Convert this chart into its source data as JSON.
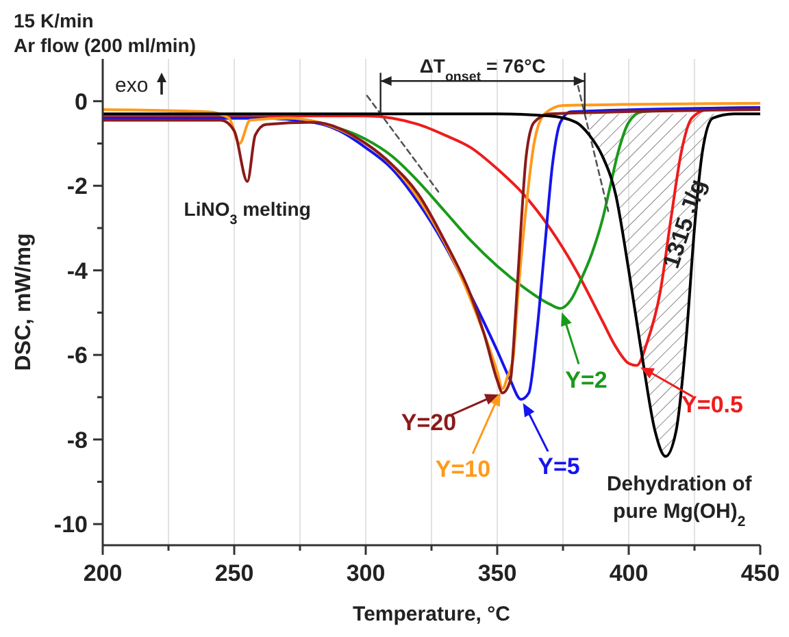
{
  "chart_data": {
    "type": "line",
    "xlabel": "Temperature, °C",
    "ylabel": "DSC, mW/mg",
    "xlim": [
      200,
      450
    ],
    "ylim": [
      -10.5,
      1
    ],
    "xticks": [
      200,
      {
        "value": 225,
        "label": null
      },
      250,
      {
        "value": 275,
        "label": null
      },
      300,
      {
        "value": 325,
        "label": null
      },
      350,
      {
        "value": 375,
        "label": null
      },
      400,
      {
        "value": 425,
        "label": null
      },
      450
    ],
    "yticks": [
      -10,
      {
        "value": -9,
        "label": null
      },
      -8,
      {
        "value": -7,
        "label": null
      },
      -6,
      {
        "value": -5,
        "label": null
      },
      -4,
      {
        "value": -3,
        "label": null
      },
      -2,
      {
        "value": -1,
        "label": null
      },
      0
    ],
    "grid": "x",
    "legend": "bottom right",
    "series": [
      {
        "color": "#000000",
        "x": [
          200,
          250,
          300,
          350,
          370,
          380,
          385,
          390,
          395,
          400,
          405,
          410,
          414,
          418,
          422,
          425,
          428,
          432,
          440,
          450
        ],
        "values": [
          -0.3,
          -0.3,
          -0.3,
          -0.3,
          -0.35,
          -0.5,
          -0.8,
          -1.3,
          -2.2,
          -4,
          -6,
          -7.8,
          -8.4,
          -7.8,
          -5.5,
          -3,
          -1.2,
          -0.4,
          -0.3,
          -0.3
        ]
      },
      {
        "name": "Y=0.5",
        "color": "#ee1c1c",
        "x": [
          200,
          250,
          300,
          310,
          320,
          330,
          340,
          350,
          360,
          370,
          380,
          390,
          395,
          400,
          403,
          407,
          412,
          416,
          420,
          424,
          430,
          450
        ],
        "values": [
          -0.35,
          -0.35,
          -0.35,
          -0.4,
          -0.55,
          -0.8,
          -1.1,
          -1.6,
          -2.2,
          -3,
          -4,
          -5.2,
          -5.8,
          -6.2,
          -6.25,
          -5.7,
          -4.5,
          -2.8,
          -1.2,
          -0.4,
          -0.2,
          -0.15
        ]
      },
      {
        "name": "Y=2",
        "color": "#1a9a1a",
        "x": [
          200,
          260,
          280,
          300,
          310,
          320,
          330,
          340,
          350,
          360,
          370,
          374,
          378,
          382,
          386,
          390,
          393,
          396,
          400,
          405,
          450
        ],
        "values": [
          -0.4,
          -0.4,
          -0.5,
          -0.9,
          -1.3,
          -1.9,
          -2.6,
          -3.3,
          -3.9,
          -4.4,
          -4.8,
          -4.9,
          -4.7,
          -4.2,
          -3.6,
          -2.8,
          -2,
          -1.2,
          -0.5,
          -0.25,
          -0.15
        ]
      },
      {
        "name": "Y=5",
        "color": "#1515ee",
        "x": [
          200,
          260,
          280,
          290,
          300,
          310,
          320,
          330,
          340,
          350,
          355,
          359,
          362,
          365,
          368,
          371,
          374,
          378,
          450
        ],
        "values": [
          -0.4,
          -0.4,
          -0.5,
          -0.7,
          -1.1,
          -1.6,
          -2.4,
          -3.4,
          -4.6,
          -5.9,
          -6.6,
          -7.05,
          -6.9,
          -5.5,
          -3.5,
          -1.5,
          -0.5,
          -0.25,
          -0.15
        ]
      },
      {
        "name": "Y=10",
        "color": "#ff9a1a",
        "x": [
          200,
          240,
          248,
          252,
          256,
          270,
          300,
          320,
          340,
          350,
          352,
          354,
          356,
          358,
          361,
          364,
          368,
          375,
          450
        ],
        "values": [
          -0.2,
          -0.25,
          -0.4,
          -1,
          -0.45,
          -0.4,
          -1,
          -2.3,
          -4.7,
          -6.4,
          -6.8,
          -6.5,
          -6.1,
          -4.5,
          -2.5,
          -1,
          -0.3,
          -0.1,
          -0.05
        ]
      },
      {
        "name": "Y=20",
        "color": "#8b1a1a",
        "x": [
          200,
          245,
          250,
          255,
          258,
          262,
          280,
          300,
          310,
          320,
          330,
          340,
          345,
          350,
          352,
          355,
          357,
          359,
          361,
          364,
          370,
          450
        ],
        "values": [
          -0.45,
          -0.45,
          -0.7,
          -1.9,
          -0.8,
          -0.55,
          -0.5,
          -1,
          -1.5,
          -2.2,
          -3.3,
          -4.6,
          -5.5,
          -6.6,
          -6.9,
          -6.6,
          -5,
          -3,
          -1.3,
          -0.5,
          -0.3,
          -0.2
        ]
      },
      {
        "color": "#555555",
        "line_style": "dashed",
        "x": [
          300.5,
          327.6
        ],
        "values": [
          0.13,
          -2.14
        ]
      },
      {
        "color": "#555555",
        "line_style": "dashed",
        "x": [
          380.7,
          392.2
        ],
        "values": [
          0.36,
          -2.6
        ]
      }
    ],
    "annotations": [
      "15 K/min",
      "Ar flow (200 ml/min)",
      "exo",
      "ΔT$_{onset}$ = 76°C",
      "1315 J/g",
      {
        "text": "LiNO$_{3}$ melting",
        "x": 255,
        "y": -1.9
      },
      {
        "text": "Dehydration of pure Mg(OH)$_{2}$",
        "x": 414,
        "y": -8.4
      }
    ]
  }
}
